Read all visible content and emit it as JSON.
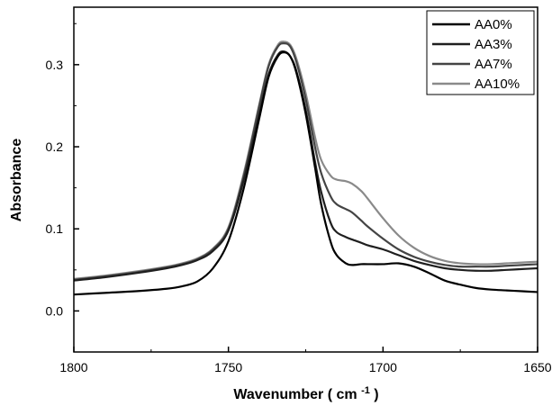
{
  "chart_data": {
    "type": "line",
    "xlabel": "Wavenumber",
    "xlabel_unit_base": "cm",
    "xlabel_unit_exp": "-1",
    "ylabel": "Absorbance",
    "xlim": [
      1800,
      1650
    ],
    "ylim": [
      -0.05,
      0.37
    ],
    "x_ticks": [
      1800,
      1750,
      1700,
      1650
    ],
    "x_tick_labels": [
      "1800",
      "1750",
      "1700",
      "1650"
    ],
    "y_ticks": [
      0.0,
      0.1,
      0.2,
      0.3
    ],
    "y_tick_labels": [
      "0.0",
      "0.1",
      "0.2",
      "0.3"
    ],
    "grid": false,
    "legend_position": "top-right",
    "series": [
      {
        "name": "AA0%",
        "color": "#000000",
        "x": [
          1800,
          1790,
          1780,
          1770,
          1765,
          1760,
          1755,
          1750,
          1745,
          1740,
          1737,
          1734,
          1732,
          1730,
          1728,
          1725,
          1722,
          1720,
          1717,
          1715,
          1712,
          1710,
          1707,
          1705,
          1700,
          1695,
          1690,
          1685,
          1680,
          1675,
          1670,
          1665,
          1660,
          1655,
          1650
        ],
        "y": [
          0.02,
          0.022,
          0.024,
          0.027,
          0.03,
          0.036,
          0.052,
          0.085,
          0.15,
          0.235,
          0.285,
          0.31,
          0.315,
          0.31,
          0.29,
          0.24,
          0.175,
          0.13,
          0.085,
          0.068,
          0.058,
          0.056,
          0.057,
          0.057,
          0.057,
          0.058,
          0.054,
          0.046,
          0.037,
          0.032,
          0.028,
          0.026,
          0.025,
          0.024,
          0.023
        ]
      },
      {
        "name": "AA3%",
        "color": "#1f1f1f",
        "x": [
          1800,
          1790,
          1780,
          1770,
          1765,
          1760,
          1755,
          1750,
          1745,
          1740,
          1737,
          1734,
          1732,
          1730,
          1728,
          1725,
          1722,
          1720,
          1717,
          1715,
          1712,
          1710,
          1707,
          1705,
          1700,
          1695,
          1690,
          1685,
          1680,
          1675,
          1670,
          1665,
          1660,
          1655,
          1650
        ],
        "y": [
          0.037,
          0.041,
          0.046,
          0.052,
          0.056,
          0.062,
          0.073,
          0.098,
          0.16,
          0.24,
          0.288,
          0.312,
          0.316,
          0.31,
          0.292,
          0.245,
          0.182,
          0.145,
          0.108,
          0.096,
          0.09,
          0.087,
          0.083,
          0.08,
          0.075,
          0.068,
          0.061,
          0.056,
          0.052,
          0.05,
          0.049,
          0.049,
          0.05,
          0.051,
          0.052
        ]
      },
      {
        "name": "AA7%",
        "color": "#444444",
        "x": [
          1800,
          1790,
          1780,
          1770,
          1765,
          1760,
          1755,
          1750,
          1745,
          1740,
          1737,
          1734,
          1732,
          1730,
          1728,
          1725,
          1722,
          1720,
          1717,
          1715,
          1712,
          1710,
          1707,
          1705,
          1700,
          1695,
          1690,
          1685,
          1680,
          1675,
          1670,
          1665,
          1660,
          1655,
          1650
        ],
        "y": [
          0.038,
          0.042,
          0.047,
          0.053,
          0.057,
          0.063,
          0.075,
          0.1,
          0.165,
          0.25,
          0.298,
          0.322,
          0.326,
          0.322,
          0.303,
          0.258,
          0.2,
          0.168,
          0.14,
          0.13,
          0.124,
          0.12,
          0.11,
          0.103,
          0.088,
          0.075,
          0.066,
          0.06,
          0.056,
          0.054,
          0.054,
          0.054,
          0.055,
          0.056,
          0.057
        ]
      },
      {
        "name": "AA10%",
        "color": "#8a8a8a",
        "x": [
          1800,
          1790,
          1780,
          1770,
          1765,
          1760,
          1755,
          1750,
          1745,
          1740,
          1737,
          1734,
          1732,
          1730,
          1728,
          1725,
          1722,
          1720,
          1717,
          1715,
          1712,
          1710,
          1707,
          1705,
          1700,
          1695,
          1690,
          1685,
          1680,
          1675,
          1670,
          1665,
          1660,
          1655,
          1650
        ],
        "y": [
          0.039,
          0.043,
          0.048,
          0.054,
          0.058,
          0.064,
          0.076,
          0.102,
          0.168,
          0.252,
          0.3,
          0.324,
          0.328,
          0.324,
          0.307,
          0.265,
          0.212,
          0.184,
          0.165,
          0.16,
          0.158,
          0.155,
          0.146,
          0.137,
          0.113,
          0.092,
          0.077,
          0.067,
          0.061,
          0.058,
          0.057,
          0.057,
          0.058,
          0.059,
          0.06
        ]
      }
    ]
  }
}
